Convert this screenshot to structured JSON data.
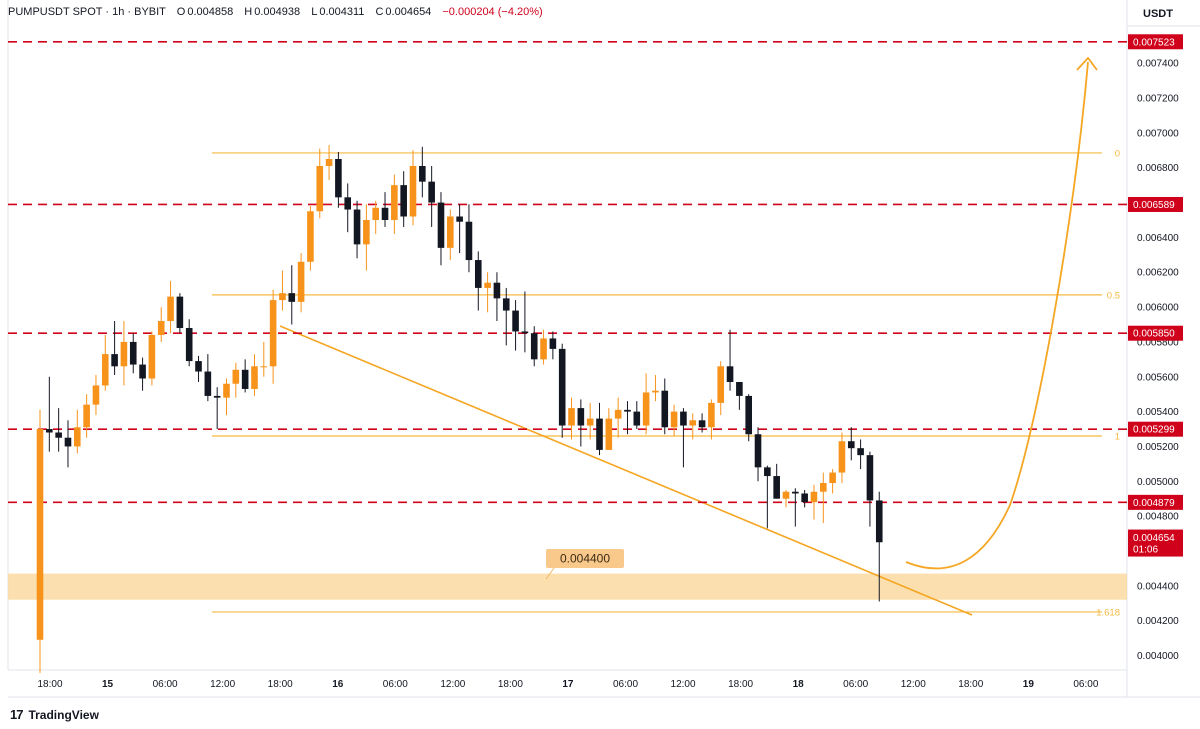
{
  "header": {
    "symbol": "PUMPUSDT SPOT · 1h · BYBIT",
    "open_label": "O",
    "open": "0.004858",
    "high_label": "H",
    "high": "0.004938",
    "low_label": "L",
    "low": "0.004311",
    "close_label": "C",
    "close": "0.004654",
    "change": "−0.000204 (−4.20%)"
  },
  "currency": "USDT",
  "brand": {
    "logo": "17",
    "name": "TradingView"
  },
  "colors": {
    "up": "#f7931a",
    "down": "#131722",
    "fib": "#f5b942",
    "red": "#d0021b",
    "trend": "#f5a623",
    "zone": "#fcd9a0"
  },
  "chart_data": {
    "type": "candlestick",
    "y_axis": {
      "min": 0.0039,
      "max": 0.0077,
      "ticks": [
        "0.004000",
        "0.004200",
        "0.004400",
        "0.004600",
        "0.004800",
        "0.005000",
        "0.005200",
        "0.005400",
        "0.005600",
        "0.005800",
        "0.006000",
        "0.006200",
        "0.006400",
        "0.006600",
        "0.006800",
        "0.007000",
        "0.007200",
        "0.007400"
      ]
    },
    "x_axis": {
      "labels": [
        "18:00",
        "15",
        "06:00",
        "12:00",
        "18:00",
        "16",
        "06:00",
        "12:00",
        "18:00",
        "17",
        "06:00",
        "12:00",
        "18:00",
        "18",
        "06:00",
        "12:00",
        "18:00",
        "19",
        "06:00"
      ],
      "bold": [
        "15",
        "16",
        "17",
        "18",
        "19"
      ]
    },
    "price_labels": [
      {
        "value": 0.007523,
        "text": "0.007523",
        "style": "red"
      },
      {
        "value": 0.006589,
        "text": "0.006589",
        "style": "red"
      },
      {
        "value": 0.00585,
        "text": "0.005850",
        "style": "red"
      },
      {
        "value": 0.005299,
        "text": "0.005299",
        "style": "red"
      },
      {
        "value": 0.004879,
        "text": "0.004879",
        "style": "red"
      },
      {
        "value": 0.004654,
        "text": "0.004654",
        "style": "current",
        "sub": "01:06"
      }
    ],
    "resistance_lines": [
      0.007523,
      0.006589,
      0.00585,
      0.005299,
      0.004879
    ],
    "fib_levels": [
      {
        "value": 0.006885,
        "label": "0"
      },
      {
        "value": 0.00607,
        "label": "0.5"
      },
      {
        "value": 0.00526,
        "label": "1"
      },
      {
        "value": 0.00425,
        "label": "1.618"
      }
    ],
    "support_zone": {
      "low": 0.00432,
      "high": 0.00447,
      "label": "0.004400"
    },
    "candles": [
      {
        "o": 0.00409,
        "h": 0.00541,
        "l": 0.0039,
        "c": 0.0053
      },
      {
        "o": 0.0053,
        "h": 0.0056,
        "l": 0.00517,
        "c": 0.00528
      },
      {
        "o": 0.00528,
        "h": 0.00542,
        "l": 0.00517,
        "c": 0.00525
      },
      {
        "o": 0.00525,
        "h": 0.00535,
        "l": 0.00508,
        "c": 0.0052
      },
      {
        "o": 0.0052,
        "h": 0.00541,
        "l": 0.00516,
        "c": 0.00531
      },
      {
        "o": 0.00531,
        "h": 0.0055,
        "l": 0.00525,
        "c": 0.00544
      },
      {
        "o": 0.00544,
        "h": 0.00561,
        "l": 0.00538,
        "c": 0.00555
      },
      {
        "o": 0.00555,
        "h": 0.00584,
        "l": 0.00552,
        "c": 0.00573
      },
      {
        "o": 0.00573,
        "h": 0.00592,
        "l": 0.00561,
        "c": 0.00566
      },
      {
        "o": 0.00566,
        "h": 0.00592,
        "l": 0.00555,
        "c": 0.0058
      },
      {
        "o": 0.0058,
        "h": 0.00585,
        "l": 0.00562,
        "c": 0.00567
      },
      {
        "o": 0.00567,
        "h": 0.00571,
        "l": 0.00552,
        "c": 0.00559
      },
      {
        "o": 0.00559,
        "h": 0.00586,
        "l": 0.00555,
        "c": 0.00584
      },
      {
        "o": 0.00584,
        "h": 0.006,
        "l": 0.0058,
        "c": 0.00592
      },
      {
        "o": 0.00592,
        "h": 0.00615,
        "l": 0.00585,
        "c": 0.00606
      },
      {
        "o": 0.00606,
        "h": 0.00608,
        "l": 0.00585,
        "c": 0.00588
      },
      {
        "o": 0.00588,
        "h": 0.00593,
        "l": 0.00566,
        "c": 0.00569
      },
      {
        "o": 0.00569,
        "h": 0.00572,
        "l": 0.00557,
        "c": 0.00563
      },
      {
        "o": 0.00563,
        "h": 0.00573,
        "l": 0.00546,
        "c": 0.00549
      },
      {
        "o": 0.00549,
        "h": 0.00554,
        "l": 0.0053,
        "c": 0.00548
      },
      {
        "o": 0.00548,
        "h": 0.00559,
        "l": 0.00538,
        "c": 0.00556
      },
      {
        "o": 0.00556,
        "h": 0.00568,
        "l": 0.00548,
        "c": 0.00564
      },
      {
        "o": 0.00564,
        "h": 0.0057,
        "l": 0.00551,
        "c": 0.00553
      },
      {
        "o": 0.00553,
        "h": 0.00573,
        "l": 0.00549,
        "c": 0.00566
      },
      {
        "o": 0.00566,
        "h": 0.0058,
        "l": 0.0056,
        "c": 0.00566
      },
      {
        "o": 0.00566,
        "h": 0.0061,
        "l": 0.00556,
        "c": 0.00604
      },
      {
        "o": 0.00604,
        "h": 0.00621,
        "l": 0.00598,
        "c": 0.00608
      },
      {
        "o": 0.00608,
        "h": 0.00624,
        "l": 0.0059,
        "c": 0.00603
      },
      {
        "o": 0.00603,
        "h": 0.00631,
        "l": 0.00597,
        "c": 0.00626
      },
      {
        "o": 0.00626,
        "h": 0.00658,
        "l": 0.00621,
        "c": 0.00655
      },
      {
        "o": 0.00655,
        "h": 0.00691,
        "l": 0.00651,
        "c": 0.00681
      },
      {
        "o": 0.00681,
        "h": 0.00693,
        "l": 0.00673,
        "c": 0.00685
      },
      {
        "o": 0.00685,
        "h": 0.00689,
        "l": 0.00657,
        "c": 0.00663
      },
      {
        "o": 0.00663,
        "h": 0.00671,
        "l": 0.00643,
        "c": 0.00656
      },
      {
        "o": 0.00656,
        "h": 0.00661,
        "l": 0.00628,
        "c": 0.00636
      },
      {
        "o": 0.00636,
        "h": 0.00659,
        "l": 0.00621,
        "c": 0.0065
      },
      {
        "o": 0.0065,
        "h": 0.00661,
        "l": 0.00642,
        "c": 0.00657
      },
      {
        "o": 0.00657,
        "h": 0.00666,
        "l": 0.00646,
        "c": 0.0065
      },
      {
        "o": 0.0065,
        "h": 0.00676,
        "l": 0.00642,
        "c": 0.0067
      },
      {
        "o": 0.0067,
        "h": 0.00678,
        "l": 0.00646,
        "c": 0.00652
      },
      {
        "o": 0.00652,
        "h": 0.0069,
        "l": 0.00647,
        "c": 0.00681
      },
      {
        "o": 0.00681,
        "h": 0.00692,
        "l": 0.00663,
        "c": 0.00672
      },
      {
        "o": 0.00672,
        "h": 0.00681,
        "l": 0.00646,
        "c": 0.0066
      },
      {
        "o": 0.0066,
        "h": 0.00666,
        "l": 0.00624,
        "c": 0.00634
      },
      {
        "o": 0.00634,
        "h": 0.00656,
        "l": 0.00627,
        "c": 0.00652
      },
      {
        "o": 0.00652,
        "h": 0.00659,
        "l": 0.00631,
        "c": 0.00649
      },
      {
        "o": 0.00649,
        "h": 0.00659,
        "l": 0.0062,
        "c": 0.00627
      },
      {
        "o": 0.00627,
        "h": 0.00632,
        "l": 0.00598,
        "c": 0.00611
      },
      {
        "o": 0.00611,
        "h": 0.0062,
        "l": 0.00597,
        "c": 0.00614
      },
      {
        "o": 0.00614,
        "h": 0.0062,
        "l": 0.00592,
        "c": 0.00605
      },
      {
        "o": 0.00605,
        "h": 0.00611,
        "l": 0.00578,
        "c": 0.00598
      },
      {
        "o": 0.00598,
        "h": 0.00604,
        "l": 0.00575,
        "c": 0.00586
      },
      {
        "o": 0.00586,
        "h": 0.00609,
        "l": 0.00574,
        "c": 0.00585
      },
      {
        "o": 0.00585,
        "h": 0.00589,
        "l": 0.00566,
        "c": 0.0057
      },
      {
        "o": 0.0057,
        "h": 0.00587,
        "l": 0.00567,
        "c": 0.00582
      },
      {
        "o": 0.00582,
        "h": 0.00586,
        "l": 0.0057,
        "c": 0.00576
      },
      {
        "o": 0.00576,
        "h": 0.00579,
        "l": 0.00525,
        "c": 0.00532
      },
      {
        "o": 0.00532,
        "h": 0.00548,
        "l": 0.00524,
        "c": 0.00542
      },
      {
        "o": 0.00542,
        "h": 0.00547,
        "l": 0.0052,
        "c": 0.00532
      },
      {
        "o": 0.00532,
        "h": 0.00545,
        "l": 0.00524,
        "c": 0.00536
      },
      {
        "o": 0.00536,
        "h": 0.00545,
        "l": 0.00515,
        "c": 0.00518
      },
      {
        "o": 0.00518,
        "h": 0.00542,
        "l": 0.00518,
        "c": 0.00536
      },
      {
        "o": 0.00536,
        "h": 0.00548,
        "l": 0.00525,
        "c": 0.00541
      },
      {
        "o": 0.00541,
        "h": 0.00546,
        "l": 0.00527,
        "c": 0.0054
      },
      {
        "o": 0.0054,
        "h": 0.00546,
        "l": 0.0053,
        "c": 0.00532
      },
      {
        "o": 0.00532,
        "h": 0.00562,
        "l": 0.00527,
        "c": 0.00551
      },
      {
        "o": 0.00551,
        "h": 0.00561,
        "l": 0.00546,
        "c": 0.00552
      },
      {
        "o": 0.00552,
        "h": 0.00559,
        "l": 0.00527,
        "c": 0.00531
      },
      {
        "o": 0.00531,
        "h": 0.00544,
        "l": 0.00526,
        "c": 0.0054
      },
      {
        "o": 0.0054,
        "h": 0.00542,
        "l": 0.00508,
        "c": 0.00532
      },
      {
        "o": 0.00532,
        "h": 0.00539,
        "l": 0.00524,
        "c": 0.00535
      },
      {
        "o": 0.00535,
        "h": 0.00539,
        "l": 0.00528,
        "c": 0.00531
      },
      {
        "o": 0.00531,
        "h": 0.00547,
        "l": 0.00524,
        "c": 0.00545
      },
      {
        "o": 0.00545,
        "h": 0.00569,
        "l": 0.00538,
        "c": 0.00566
      },
      {
        "o": 0.00566,
        "h": 0.00587,
        "l": 0.00552,
        "c": 0.00557
      },
      {
        "o": 0.00557,
        "h": 0.00557,
        "l": 0.00541,
        "c": 0.00549
      },
      {
        "o": 0.00549,
        "h": 0.0055,
        "l": 0.00523,
        "c": 0.00527
      },
      {
        "o": 0.00527,
        "h": 0.00531,
        "l": 0.005,
        "c": 0.00508
      },
      {
        "o": 0.00508,
        "h": 0.00509,
        "l": 0.00473,
        "c": 0.00503
      },
      {
        "o": 0.00503,
        "h": 0.0051,
        "l": 0.0049,
        "c": 0.0049
      },
      {
        "o": 0.0049,
        "h": 0.00495,
        "l": 0.00485,
        "c": 0.00494
      },
      {
        "o": 0.00494,
        "h": 0.00496,
        "l": 0.00474,
        "c": 0.00493
      },
      {
        "o": 0.00493,
        "h": 0.00495,
        "l": 0.00485,
        "c": 0.00488
      },
      {
        "o": 0.00488,
        "h": 0.00498,
        "l": 0.00478,
        "c": 0.00494
      },
      {
        "o": 0.00494,
        "h": 0.00505,
        "l": 0.00476,
        "c": 0.00499
      },
      {
        "o": 0.00499,
        "h": 0.00507,
        "l": 0.00493,
        "c": 0.00505
      },
      {
        "o": 0.00505,
        "h": 0.00528,
        "l": 0.00499,
        "c": 0.00523
      },
      {
        "o": 0.00523,
        "h": 0.00531,
        "l": 0.00512,
        "c": 0.00519
      },
      {
        "o": 0.00519,
        "h": 0.00524,
        "l": 0.00507,
        "c": 0.00515
      },
      {
        "o": 0.00515,
        "h": 0.00517,
        "l": 0.00474,
        "c": 0.00489
      },
      {
        "o": 0.00489,
        "h": 0.00494,
        "l": 0.00431,
        "c": 0.00465
      }
    ]
  }
}
